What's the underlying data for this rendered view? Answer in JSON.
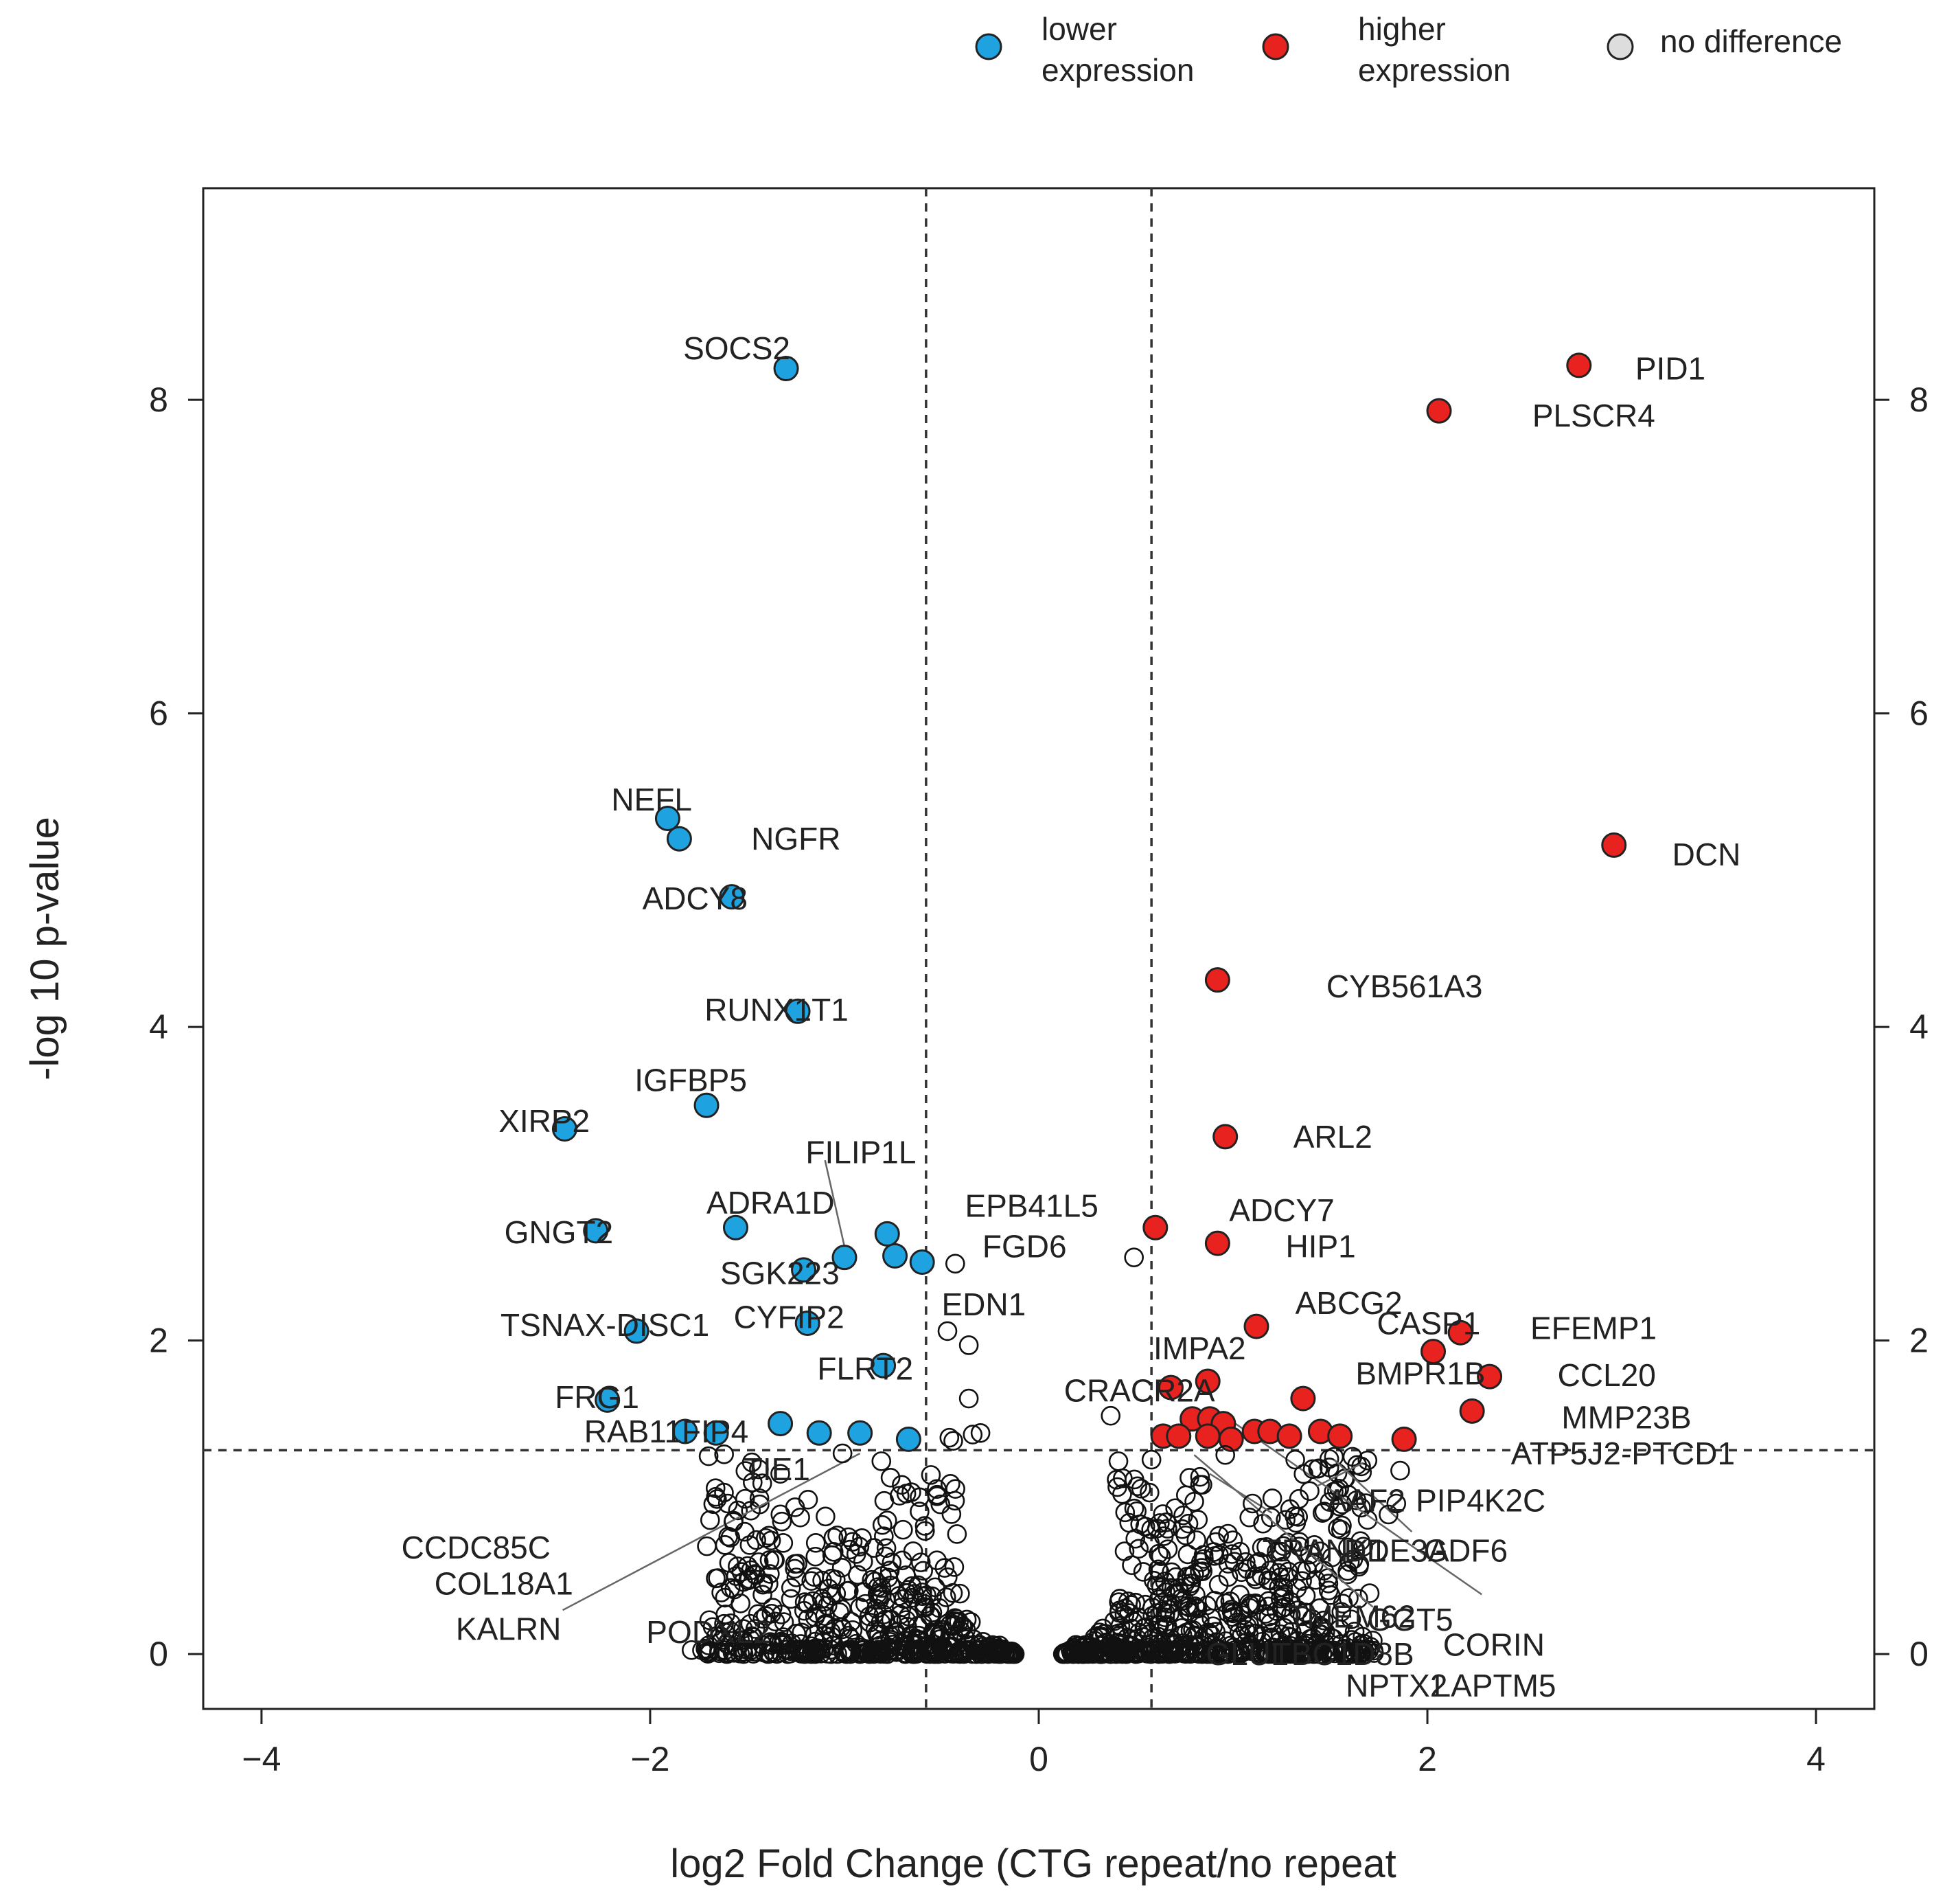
{
  "chart_data": {
    "type": "scatter",
    "title": "",
    "xlabel": "log2 Fold Change (CTG repeat/no repeat",
    "ylabel": "-log 10 p-value",
    "xlim": [
      -4.3,
      4.3
    ],
    "ylim": [
      -0.35,
      9.35
    ],
    "x_ticks": [
      -4,
      -2,
      0,
      2,
      4
    ],
    "x_tick_labels": [
      "−4",
      "−2",
      "0",
      "2",
      "4"
    ],
    "y_ticks": [
      0,
      2,
      4,
      6,
      8
    ],
    "y_tick_labels": [
      "0",
      "2",
      "4",
      "6",
      "8"
    ],
    "thresholds": {
      "fold_change_low": -0.58,
      "fold_change_high": 0.58,
      "neg_log10_p": 1.3
    },
    "colors": {
      "lower": "#1FA3E0",
      "higher": "#E8231F",
      "none": "#DDDDDD"
    },
    "legend": [
      {
        "key": "lower",
        "lines": [
          "lower",
          "expression"
        ],
        "color": "#1FA3E0"
      },
      {
        "key": "higher",
        "lines": [
          "higher",
          "expression"
        ],
        "color": "#E8231F"
      },
      {
        "key": "none",
        "lines": [
          "no difference"
        ],
        "color": "#DDDDDD"
      }
    ],
    "series": [
      {
        "name": "lower expression",
        "points": [
          {
            "x": -1.3,
            "y": 8.2
          },
          {
            "x": -1.91,
            "y": 5.33
          },
          {
            "x": -1.85,
            "y": 5.2
          },
          {
            "x": -1.58,
            "y": 4.83
          },
          {
            "x": -1.24,
            "y": 4.1
          },
          {
            "x": -1.71,
            "y": 3.5
          },
          {
            "x": -2.44,
            "y": 3.35
          },
          {
            "x": -1.56,
            "y": 2.72
          },
          {
            "x": -2.28,
            "y": 2.7
          },
          {
            "x": -0.78,
            "y": 2.68
          },
          {
            "x": -0.74,
            "y": 2.54
          },
          {
            "x": -0.6,
            "y": 2.5
          },
          {
            "x": -1.0,
            "y": 2.53
          },
          {
            "x": -1.21,
            "y": 2.45
          },
          {
            "x": -1.19,
            "y": 2.11
          },
          {
            "x": -2.07,
            "y": 2.06
          },
          {
            "x": -0.8,
            "y": 1.84
          },
          {
            "x": -2.22,
            "y": 1.62
          },
          {
            "x": -1.33,
            "y": 1.47
          },
          {
            "x": -1.82,
            "y": 1.42
          },
          {
            "x": -1.66,
            "y": 1.41
          },
          {
            "x": -1.13,
            "y": 1.41
          },
          {
            "x": -0.92,
            "y": 1.41
          },
          {
            "x": -0.67,
            "y": 1.37
          }
        ]
      },
      {
        "name": "higher expression",
        "points": [
          {
            "x": 2.78,
            "y": 8.22
          },
          {
            "x": 2.06,
            "y": 7.93
          },
          {
            "x": 2.96,
            "y": 5.16
          },
          {
            "x": 0.92,
            "y": 4.3
          },
          {
            "x": 0.96,
            "y": 3.3
          },
          {
            "x": 0.6,
            "y": 2.72
          },
          {
            "x": 0.92,
            "y": 2.62
          },
          {
            "x": 1.12,
            "y": 2.09
          },
          {
            "x": 2.17,
            "y": 2.05
          },
          {
            "x": 2.03,
            "y": 1.93
          },
          {
            "x": 2.32,
            "y": 1.77
          },
          {
            "x": 0.87,
            "y": 1.74
          },
          {
            "x": 0.68,
            "y": 1.7
          },
          {
            "x": 1.36,
            "y": 1.63
          },
          {
            "x": 2.23,
            "y": 1.55
          },
          {
            "x": 0.79,
            "y": 1.5
          },
          {
            "x": 0.88,
            "y": 1.5
          },
          {
            "x": 0.95,
            "y": 1.47
          },
          {
            "x": 1.11,
            "y": 1.42
          },
          {
            "x": 1.19,
            "y": 1.42
          },
          {
            "x": 1.45,
            "y": 1.42
          },
          {
            "x": 0.64,
            "y": 1.39
          },
          {
            "x": 0.72,
            "y": 1.39
          },
          {
            "x": 0.87,
            "y": 1.39
          },
          {
            "x": 1.29,
            "y": 1.39
          },
          {
            "x": 1.55,
            "y": 1.39
          },
          {
            "x": 0.99,
            "y": 1.37
          },
          {
            "x": 1.88,
            "y": 1.37
          }
        ]
      },
      {
        "name": "no difference",
        "points": [
          {
            "x": 0.49,
            "y": 2.53
          },
          {
            "x": -0.43,
            "y": 2.49
          },
          {
            "x": -0.47,
            "y": 2.06
          },
          {
            "x": -0.36,
            "y": 1.97
          },
          {
            "x": -0.36,
            "y": 1.63
          },
          {
            "x": 0.37,
            "y": 1.52
          },
          {
            "x": -0.46,
            "y": 1.38
          },
          {
            "x": -0.44,
            "y": 1.36
          },
          {
            "x": -0.34,
            "y": 1.4
          },
          {
            "x": -0.3,
            "y": 1.41
          },
          {
            "x": -0.81,
            "y": 1.23
          },
          {
            "x": -1.01,
            "y": 1.28
          },
          {
            "x": 0.41,
            "y": 1.23
          },
          {
            "x": 0.57,
            "y": 1.03
          },
          {
            "x": 0.96,
            "y": 1.27
          },
          {
            "x": 0.58,
            "y": 1.24
          },
          {
            "x": -1.62,
            "y": 1.03
          },
          {
            "x": -1.6,
            "y": 0.96
          },
          {
            "x": -1.57,
            "y": 0.85
          },
          {
            "x": 0.83,
            "y": 1.08
          },
          {
            "x": 0.83,
            "y": 1.13
          },
          {
            "x": 1.32,
            "y": 1.24
          },
          {
            "x": 1.41,
            "y": 1.18
          },
          {
            "x": 1.86,
            "y": 1.17
          },
          {
            "x": 1.1,
            "y": 0.96
          },
          {
            "x": 1.8,
            "y": 0.89
          },
          {
            "x": 1.84,
            "y": 0.96
          },
          {
            "x": 1.56,
            "y": 0.82
          },
          {
            "x": 1.46,
            "y": 0.9
          }
        ]
      }
    ],
    "gene_labels": [
      {
        "text": "SOCS2",
        "x": -1.83,
        "y": 8.33
      },
      {
        "text": "PID1",
        "x": 3.07,
        "y": 8.2
      },
      {
        "text": "PLSCR4",
        "x": 2.54,
        "y": 7.9
      },
      {
        "text": "NEFL",
        "x": -2.2,
        "y": 5.45
      },
      {
        "text": "NGFR",
        "x": -1.48,
        "y": 5.2
      },
      {
        "text": "DCN",
        "x": 3.26,
        "y": 5.1
      },
      {
        "text": "ADCY8",
        "x": -2.04,
        "y": 4.82
      },
      {
        "text": "CYB561A3",
        "x": 1.48,
        "y": 4.26
      },
      {
        "text": "RUNX1T1",
        "x": -1.72,
        "y": 4.11
      },
      {
        "text": "IGFBP5",
        "x": -2.08,
        "y": 3.66
      },
      {
        "text": "XIRP2",
        "x": -2.78,
        "y": 3.4
      },
      {
        "text": "ARL2",
        "x": 1.31,
        "y": 3.3
      },
      {
        "text": "FILIP1L",
        "x": -1.2,
        "y": 3.2
      },
      {
        "text": "EPB41L5",
        "x": -0.38,
        "y": 2.86
      },
      {
        "text": "ADCY7",
        "x": 0.98,
        "y": 2.83
      },
      {
        "text": "ADRA1D",
        "x": -1.71,
        "y": 2.88
      },
      {
        "text": "GNGT2",
        "x": -2.75,
        "y": 2.69
      },
      {
        "text": "FGD6",
        "x": -0.29,
        "y": 2.6
      },
      {
        "text": "HIP1",
        "x": 1.27,
        "y": 2.6
      },
      {
        "text": "SGK223",
        "x": -1.64,
        "y": 2.43
      },
      {
        "text": "EDN1",
        "x": -0.5,
        "y": 2.23
      },
      {
        "text": "ABCG2",
        "x": 1.32,
        "y": 2.24
      },
      {
        "text": "TSNAX-DISC1",
        "x": -2.77,
        "y": 2.1
      },
      {
        "text": "CYFIP2",
        "x": -1.57,
        "y": 2.15
      },
      {
        "text": "CASP1",
        "x": 1.74,
        "y": 2.11
      },
      {
        "text": "EFEMP1",
        "x": 2.53,
        "y": 2.08
      },
      {
        "text": "IMPA2",
        "x": 0.59,
        "y": 1.95
      },
      {
        "text": "FLRT2",
        "x": -1.14,
        "y": 1.82
      },
      {
        "text": "BMPR1B",
        "x": 1.63,
        "y": 1.79
      },
      {
        "text": "CCL20",
        "x": 2.67,
        "y": 1.78
      },
      {
        "text": "CRACR2A",
        "x": 0.13,
        "y": 1.68
      },
      {
        "text": "FRG1",
        "x": -2.49,
        "y": 1.64
      },
      {
        "text": "MMP23B",
        "x": 2.69,
        "y": 1.51
      },
      {
        "text": "RAB11FIP4",
        "x": -2.34,
        "y": 1.42
      },
      {
        "text": "ATP5J2-PTCD1",
        "x": 2.43,
        "y": 1.28
      },
      {
        "text": "TIE1",
        "x": -1.52,
        "y": 1.18
      },
      {
        "text": "AAF2",
        "x": 1.48,
        "y": 0.98
      },
      {
        "text": "PIP4K2C",
        "x": 1.94,
        "y": 0.98
      },
      {
        "text": "CCDC85C",
        "x": -3.28,
        "y": 0.68
      },
      {
        "text": "TRANK1",
        "x": 1.15,
        "y": 0.66
      },
      {
        "text": "DDE3A",
        "x": 1.57,
        "y": 0.66
      },
      {
        "text": "GDF6",
        "x": 1.98,
        "y": 0.66
      },
      {
        "text": "COL18A1",
        "x": -3.11,
        "y": 0.45
      },
      {
        "text": "TMEM62",
        "x": 1.28,
        "y": 0.24
      },
      {
        "text": "GGT5",
        "x": 1.69,
        "y": 0.22
      },
      {
        "text": "KALRN",
        "x": -3.0,
        "y": 0.16
      },
      {
        "text": "PODXL2",
        "x": -2.02,
        "y": 0.14
      },
      {
        "text": "CORIN",
        "x": 2.08,
        "y": 0.06
      },
      {
        "text": "GLUL",
        "x": 0.86,
        "y": 0.0
      },
      {
        "text": "TBC1D8B",
        "x": 1.2,
        "y": 0.0
      },
      {
        "text": "NPTX2",
        "x": 1.58,
        "y": -0.2
      },
      {
        "text": "LAPTM5",
        "x": 2.03,
        "y": -0.2
      }
    ]
  }
}
